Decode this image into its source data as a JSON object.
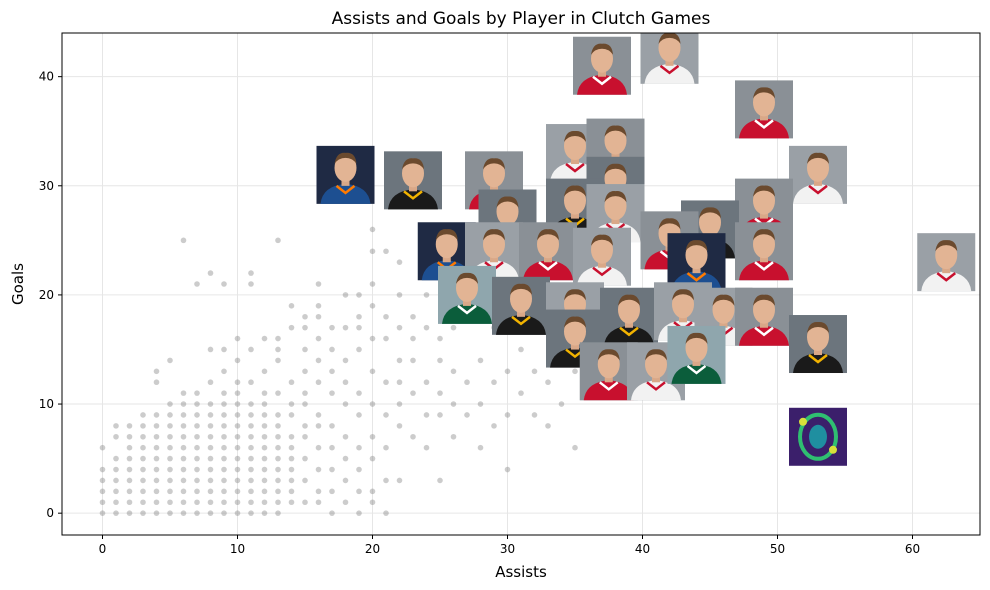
{
  "chart_data": {
    "type": "scatter",
    "title": "Assists and Goals by Player in Clutch Games",
    "xlabel": "Assists",
    "ylabel": "Goals",
    "xlim": [
      -3,
      65
    ],
    "ylim": [
      -2,
      44
    ],
    "xticks": [
      0,
      10,
      20,
      30,
      40,
      50,
      60
    ],
    "yticks": [
      0,
      10,
      20,
      30,
      40
    ],
    "grid": true,
    "point_color": "#808080",
    "points": [
      [
        0,
        0
      ],
      [
        0,
        1
      ],
      [
        0,
        2
      ],
      [
        0,
        3
      ],
      [
        0,
        4
      ],
      [
        0,
        6
      ],
      [
        1,
        0
      ],
      [
        1,
        1
      ],
      [
        1,
        2
      ],
      [
        1,
        3
      ],
      [
        1,
        4
      ],
      [
        1,
        5
      ],
      [
        1,
        7
      ],
      [
        1,
        8
      ],
      [
        2,
        0
      ],
      [
        2,
        1
      ],
      [
        2,
        2
      ],
      [
        2,
        3
      ],
      [
        2,
        4
      ],
      [
        2,
        5
      ],
      [
        2,
        6
      ],
      [
        2,
        7
      ],
      [
        2,
        8
      ],
      [
        3,
        0
      ],
      [
        3,
        1
      ],
      [
        3,
        2
      ],
      [
        3,
        3
      ],
      [
        3,
        4
      ],
      [
        3,
        5
      ],
      [
        3,
        6
      ],
      [
        3,
        7
      ],
      [
        3,
        8
      ],
      [
        3,
        9
      ],
      [
        4,
        0
      ],
      [
        4,
        1
      ],
      [
        4,
        2
      ],
      [
        4,
        3
      ],
      [
        4,
        4
      ],
      [
        4,
        5
      ],
      [
        4,
        6
      ],
      [
        4,
        7
      ],
      [
        4,
        8
      ],
      [
        4,
        9
      ],
      [
        4,
        12
      ],
      [
        4,
        13
      ],
      [
        5,
        0
      ],
      [
        5,
        1
      ],
      [
        5,
        2
      ],
      [
        5,
        3
      ],
      [
        5,
        4
      ],
      [
        5,
        5
      ],
      [
        5,
        6
      ],
      [
        5,
        7
      ],
      [
        5,
        8
      ],
      [
        5,
        9
      ],
      [
        5,
        10
      ],
      [
        5,
        14
      ],
      [
        6,
        0
      ],
      [
        6,
        1
      ],
      [
        6,
        2
      ],
      [
        6,
        3
      ],
      [
        6,
        4
      ],
      [
        6,
        5
      ],
      [
        6,
        6
      ],
      [
        6,
        7
      ],
      [
        6,
        8
      ],
      [
        6,
        9
      ],
      [
        6,
        10
      ],
      [
        6,
        11
      ],
      [
        6,
        25
      ],
      [
        7,
        0
      ],
      [
        7,
        1
      ],
      [
        7,
        2
      ],
      [
        7,
        3
      ],
      [
        7,
        4
      ],
      [
        7,
        5
      ],
      [
        7,
        6
      ],
      [
        7,
        7
      ],
      [
        7,
        8
      ],
      [
        7,
        9
      ],
      [
        7,
        10
      ],
      [
        7,
        11
      ],
      [
        7,
        21
      ],
      [
        8,
        0
      ],
      [
        8,
        1
      ],
      [
        8,
        2
      ],
      [
        8,
        3
      ],
      [
        8,
        4
      ],
      [
        8,
        5
      ],
      [
        8,
        6
      ],
      [
        8,
        7
      ],
      [
        8,
        8
      ],
      [
        8,
        9
      ],
      [
        8,
        10
      ],
      [
        8,
        12
      ],
      [
        8,
        15
      ],
      [
        8,
        22
      ],
      [
        9,
        0
      ],
      [
        9,
        1
      ],
      [
        9,
        2
      ],
      [
        9,
        3
      ],
      [
        9,
        4
      ],
      [
        9,
        5
      ],
      [
        9,
        6
      ],
      [
        9,
        7
      ],
      [
        9,
        8
      ],
      [
        9,
        9
      ],
      [
        9,
        10
      ],
      [
        9,
        11
      ],
      [
        9,
        13
      ],
      [
        9,
        15
      ],
      [
        9,
        21
      ],
      [
        10,
        0
      ],
      [
        10,
        1
      ],
      [
        10,
        2
      ],
      [
        10,
        3
      ],
      [
        10,
        4
      ],
      [
        10,
        5
      ],
      [
        10,
        6
      ],
      [
        10,
        7
      ],
      [
        10,
        8
      ],
      [
        10,
        9
      ],
      [
        10,
        10
      ],
      [
        10,
        11
      ],
      [
        10,
        12
      ],
      [
        10,
        14
      ],
      [
        10,
        16
      ],
      [
        11,
        0
      ],
      [
        11,
        1
      ],
      [
        11,
        2
      ],
      [
        11,
        3
      ],
      [
        11,
        4
      ],
      [
        11,
        5
      ],
      [
        11,
        6
      ],
      [
        11,
        7
      ],
      [
        11,
        8
      ],
      [
        11,
        9
      ],
      [
        11,
        10
      ],
      [
        11,
        12
      ],
      [
        11,
        15
      ],
      [
        11,
        21
      ],
      [
        11,
        22
      ],
      [
        12,
        0
      ],
      [
        12,
        1
      ],
      [
        12,
        2
      ],
      [
        12,
        3
      ],
      [
        12,
        4
      ],
      [
        12,
        5
      ],
      [
        12,
        6
      ],
      [
        12,
        7
      ],
      [
        12,
        8
      ],
      [
        12,
        9
      ],
      [
        12,
        10
      ],
      [
        12,
        11
      ],
      [
        12,
        13
      ],
      [
        12,
        16
      ],
      [
        13,
        0
      ],
      [
        13,
        1
      ],
      [
        13,
        2
      ],
      [
        13,
        3
      ],
      [
        13,
        4
      ],
      [
        13,
        5
      ],
      [
        13,
        6
      ],
      [
        13,
        7
      ],
      [
        13,
        8
      ],
      [
        13,
        9
      ],
      [
        13,
        11
      ],
      [
        13,
        14
      ],
      [
        13,
        15
      ],
      [
        13,
        16
      ],
      [
        13,
        25
      ],
      [
        14,
        1
      ],
      [
        14,
        2
      ],
      [
        14,
        3
      ],
      [
        14,
        4
      ],
      [
        14,
        5
      ],
      [
        14,
        6
      ],
      [
        14,
        7
      ],
      [
        14,
        9
      ],
      [
        14,
        10
      ],
      [
        14,
        12
      ],
      [
        14,
        17
      ],
      [
        14,
        19
      ],
      [
        15,
        1
      ],
      [
        15,
        3
      ],
      [
        15,
        5
      ],
      [
        15,
        7
      ],
      [
        15,
        8
      ],
      [
        15,
        10
      ],
      [
        15,
        11
      ],
      [
        15,
        13
      ],
      [
        15,
        15
      ],
      [
        15,
        17
      ],
      [
        15,
        18
      ],
      [
        16,
        1
      ],
      [
        16,
        2
      ],
      [
        16,
        4
      ],
      [
        16,
        6
      ],
      [
        16,
        8
      ],
      [
        16,
        9
      ],
      [
        16,
        12
      ],
      [
        16,
        14
      ],
      [
        16,
        16
      ],
      [
        16,
        18
      ],
      [
        16,
        19
      ],
      [
        16,
        21
      ],
      [
        17,
        0
      ],
      [
        17,
        2
      ],
      [
        17,
        4
      ],
      [
        17,
        6
      ],
      [
        17,
        8
      ],
      [
        17,
        11
      ],
      [
        17,
        13
      ],
      [
        17,
        15
      ],
      [
        17,
        17
      ],
      [
        18,
        1
      ],
      [
        18,
        3
      ],
      [
        18,
        5
      ],
      [
        18,
        7
      ],
      [
        18,
        10
      ],
      [
        18,
        12
      ],
      [
        18,
        14
      ],
      [
        18,
        17
      ],
      [
        18,
        20
      ],
      [
        19,
        0
      ],
      [
        19,
        2
      ],
      [
        19,
        4
      ],
      [
        19,
        6
      ],
      [
        19,
        9
      ],
      [
        19,
        11
      ],
      [
        19,
        15
      ],
      [
        19,
        17
      ],
      [
        19,
        18
      ],
      [
        19,
        20
      ],
      [
        20,
        1
      ],
      [
        20,
        2
      ],
      [
        20,
        5
      ],
      [
        20,
        7
      ],
      [
        20,
        10
      ],
      [
        20,
        13
      ],
      [
        20,
        16
      ],
      [
        20,
        19
      ],
      [
        20,
        21
      ],
      [
        20,
        24
      ],
      [
        20,
        26
      ],
      [
        21,
        0
      ],
      [
        21,
        3
      ],
      [
        21,
        6
      ],
      [
        21,
        9
      ],
      [
        21,
        12
      ],
      [
        21,
        16
      ],
      [
        21,
        18
      ],
      [
        21,
        24
      ],
      [
        22,
        3
      ],
      [
        22,
        8
      ],
      [
        22,
        10
      ],
      [
        22,
        12
      ],
      [
        22,
        14
      ],
      [
        22,
        17
      ],
      [
        22,
        20
      ],
      [
        22,
        23
      ],
      [
        23,
        7
      ],
      [
        23,
        11
      ],
      [
        23,
        14
      ],
      [
        23,
        16
      ],
      [
        23,
        18
      ],
      [
        24,
        6
      ],
      [
        24,
        9
      ],
      [
        24,
        12
      ],
      [
        24,
        17
      ],
      [
        24,
        20
      ],
      [
        25,
        3
      ],
      [
        25,
        9
      ],
      [
        25,
        11
      ],
      [
        25,
        14
      ],
      [
        25,
        16
      ],
      [
        26,
        7
      ],
      [
        26,
        10
      ],
      [
        26,
        13
      ],
      [
        26,
        17
      ],
      [
        27,
        9
      ],
      [
        27,
        12
      ],
      [
        27,
        19
      ],
      [
        28,
        6
      ],
      [
        28,
        10
      ],
      [
        28,
        14
      ],
      [
        29,
        8
      ],
      [
        29,
        12
      ],
      [
        29,
        17
      ],
      [
        30,
        4
      ],
      [
        30,
        9
      ],
      [
        30,
        13
      ],
      [
        31,
        11
      ],
      [
        31,
        15
      ],
      [
        32,
        9
      ],
      [
        32,
        13
      ],
      [
        33,
        8
      ],
      [
        33,
        12
      ],
      [
        34,
        10
      ],
      [
        35,
        6
      ],
      [
        35,
        13
      ]
    ],
    "player_images": [
      {
        "assists": 37.0,
        "goals": 41.0,
        "palette": "face-red"
      },
      {
        "assists": 42.0,
        "goals": 42.0,
        "palette": "face-white"
      },
      {
        "assists": 49.0,
        "goals": 37.0,
        "palette": "face-red"
      },
      {
        "assists": 18.0,
        "goals": 31.0,
        "palette": "face-blue"
      },
      {
        "assists": 23.0,
        "goals": 30.5,
        "palette": "face-black"
      },
      {
        "assists": 29.0,
        "goals": 30.5,
        "palette": "face-red"
      },
      {
        "assists": 35.0,
        "goals": 33.0,
        "palette": "face-white"
      },
      {
        "assists": 38.0,
        "goals": 33.5,
        "palette": "face-red"
      },
      {
        "assists": 38.0,
        "goals": 30.0,
        "palette": "face-black"
      },
      {
        "assists": 53.0,
        "goals": 31.0,
        "palette": "face-white"
      },
      {
        "assists": 35.0,
        "goals": 28.0,
        "palette": "face-black"
      },
      {
        "assists": 38.0,
        "goals": 27.5,
        "palette": "face-white"
      },
      {
        "assists": 30.0,
        "goals": 27.0,
        "palette": "face-black"
      },
      {
        "assists": 49.0,
        "goals": 28.0,
        "palette": "face-red"
      },
      {
        "assists": 45.0,
        "goals": 26.0,
        "palette": "face-black"
      },
      {
        "assists": 42.0,
        "goals": 25.0,
        "palette": "face-red"
      },
      {
        "assists": 25.5,
        "goals": 24.0,
        "palette": "face-blue"
      },
      {
        "assists": 29.0,
        "goals": 24.0,
        "palette": "face-white"
      },
      {
        "assists": 33.0,
        "goals": 24.0,
        "palette": "face-red"
      },
      {
        "assists": 37.0,
        "goals": 23.5,
        "palette": "face-white"
      },
      {
        "assists": 44.0,
        "goals": 23.0,
        "palette": "face-blue"
      },
      {
        "assists": 49.0,
        "goals": 24.0,
        "palette": "face-red"
      },
      {
        "assists": 62.5,
        "goals": 23.0,
        "palette": "face-white"
      },
      {
        "assists": 27.0,
        "goals": 20.0,
        "palette": "face-green"
      },
      {
        "assists": 31.0,
        "goals": 19.0,
        "palette": "face-black"
      },
      {
        "assists": 35.0,
        "goals": 18.5,
        "palette": "face-white"
      },
      {
        "assists": 39.0,
        "goals": 18.0,
        "palette": "face-black"
      },
      {
        "assists": 43.0,
        "goals": 18.5,
        "palette": "face-white"
      },
      {
        "assists": 46.0,
        "goals": 18.0,
        "palette": "face-white"
      },
      {
        "assists": 49.0,
        "goals": 18.0,
        "palette": "face-red"
      },
      {
        "assists": 35.0,
        "goals": 16.0,
        "palette": "face-black"
      },
      {
        "assists": 53.0,
        "goals": 15.5,
        "palette": "face-black"
      },
      {
        "assists": 37.5,
        "goals": 13.0,
        "palette": "face-red"
      },
      {
        "assists": 41.0,
        "goals": 13.0,
        "palette": "face-white"
      },
      {
        "assists": 44.0,
        "goals": 14.5,
        "palette": "face-green"
      },
      {
        "assists": 53.0,
        "goals": 7.0,
        "palette": "blur"
      }
    ]
  }
}
